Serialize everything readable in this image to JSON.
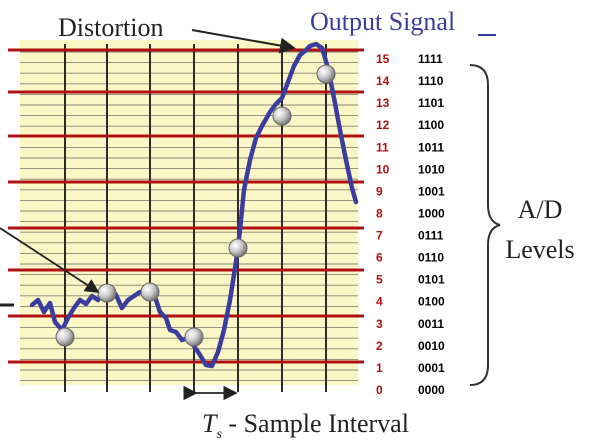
{
  "title_output": "Output Signal",
  "label_distortion": "Distortion",
  "label_ad_line1": "A/D",
  "label_ad_line2": "Levels",
  "label_ts_symbol": "T",
  "label_ts_sub": "s",
  "label_ts_text": " - Sample Interval",
  "levels": [
    {
      "n": "15",
      "code": "1111"
    },
    {
      "n": "14",
      "code": "1110"
    },
    {
      "n": "13",
      "code": "1101"
    },
    {
      "n": "12",
      "code": "1100"
    },
    {
      "n": "11",
      "code": "1011"
    },
    {
      "n": "10",
      "code": "1010"
    },
    {
      "n": "9",
      "code": "1001"
    },
    {
      "n": "8",
      "code": "1000"
    },
    {
      "n": "7",
      "code": "0111"
    },
    {
      "n": "6",
      "code": "0110"
    },
    {
      "n": "5",
      "code": "0101"
    },
    {
      "n": "4",
      "code": "0100"
    },
    {
      "n": "3",
      "code": "0011"
    },
    {
      "n": "2",
      "code": "0010"
    },
    {
      "n": "1",
      "code": "0001"
    },
    {
      "n": "0",
      "code": "0000"
    }
  ],
  "colors": {
    "grid_bg": "#fbf6c6",
    "grid_line": "#2a2a2a",
    "level_line": "#b01010",
    "signal": "#3b3d9e",
    "level_num": "#b01010",
    "level_code": "#000000",
    "text_dark": "#222222",
    "title_blue": "#3b3d9e"
  }
}
